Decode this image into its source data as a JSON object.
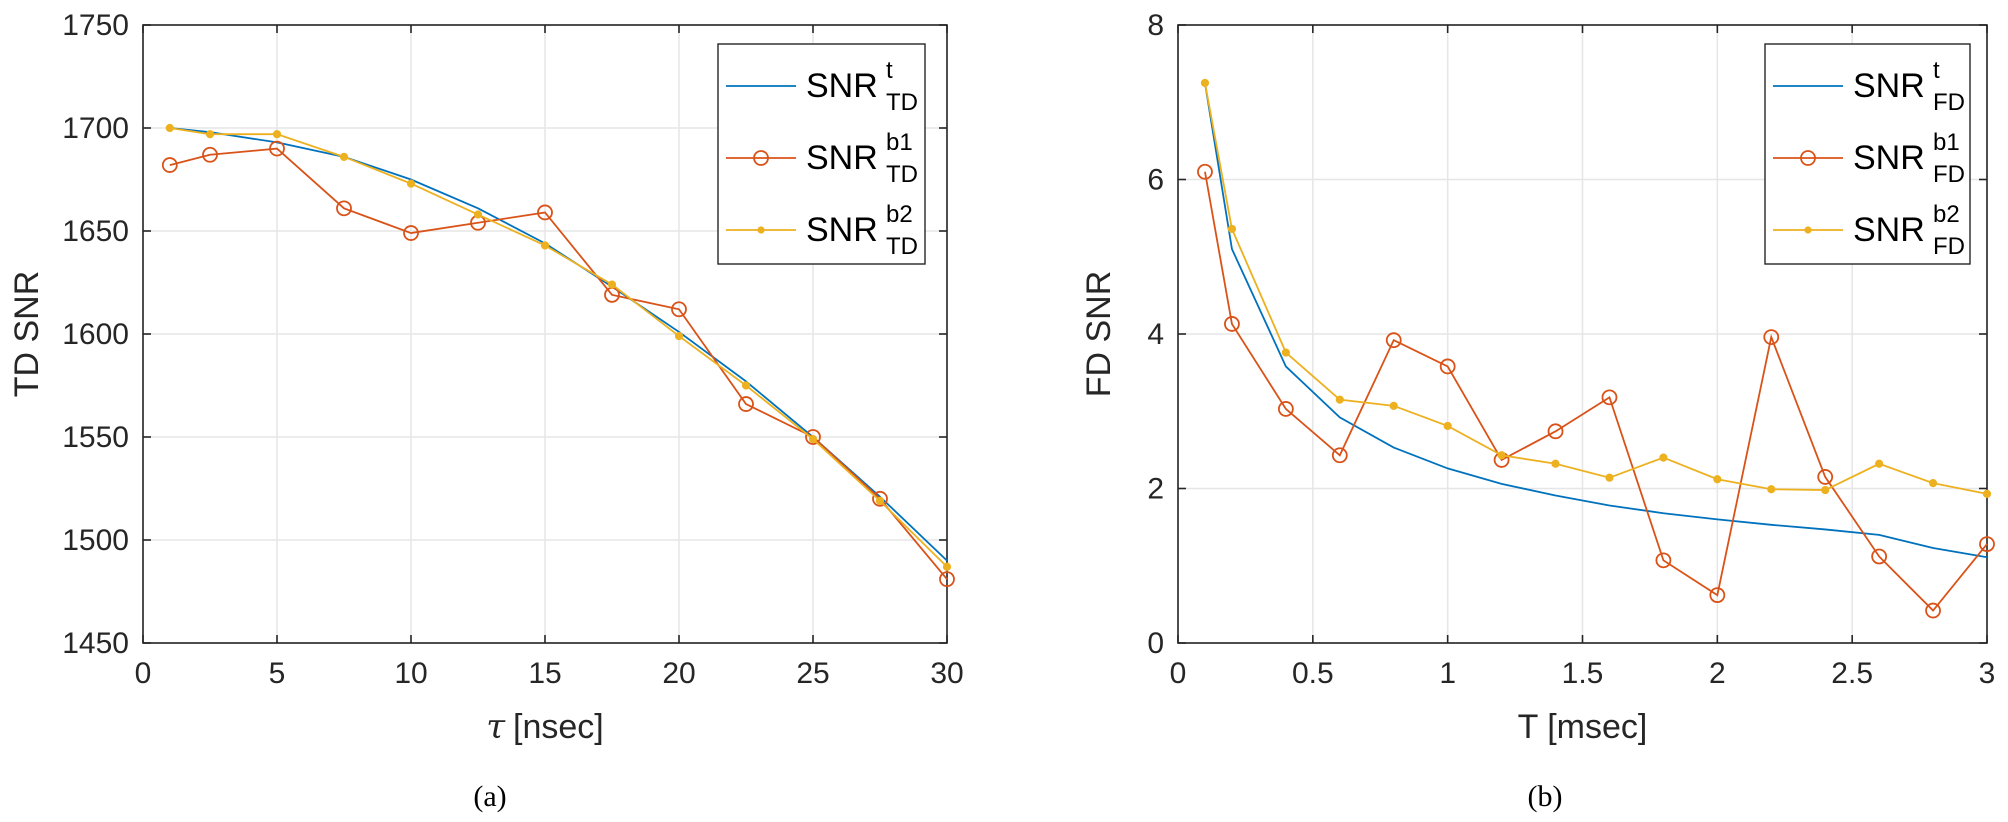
{
  "colors": {
    "blue": "#0072BD",
    "orange": "#D95319",
    "yellow": "#EDB120",
    "grid": "#E6E6E6",
    "axis": "#262626"
  },
  "chart_data": [
    {
      "type": "line",
      "panel": "(a)",
      "xlabel_symbol": "τ",
      "xlabel": "[nsec]",
      "ylabel": "TD SNR",
      "xlim": [
        0,
        30
      ],
      "ylim": [
        1450,
        1750
      ],
      "xticks": [
        0,
        5,
        10,
        15,
        20,
        25,
        30
      ],
      "yticks": [
        1450,
        1500,
        1550,
        1600,
        1650,
        1700,
        1750
      ],
      "grid": true,
      "legend_position": "top-right",
      "series": [
        {
          "name": "SNR",
          "sup": "t",
          "sub": "TD",
          "color": "#0072BD",
          "marker": "none",
          "x": [
            1,
            2.5,
            5,
            7.5,
            10,
            12.5,
            15,
            17.5,
            20,
            22.5,
            25,
            27.5,
            30
          ],
          "y": [
            1700,
            1698,
            1693,
            1686,
            1675,
            1661,
            1644,
            1623,
            1601,
            1577,
            1550,
            1521,
            1490
          ]
        },
        {
          "name": "SNR",
          "sup": "b1",
          "sub": "TD",
          "color": "#D95319",
          "marker": "circle",
          "x": [
            1,
            2.5,
            5,
            7.5,
            10,
            12.5,
            15,
            17.5,
            20,
            22.5,
            25,
            27.5,
            30
          ],
          "y": [
            1682,
            1687,
            1690,
            1661,
            1649,
            1654,
            1659,
            1619,
            1612,
            1566,
            1550,
            1520,
            1481
          ]
        },
        {
          "name": "SNR",
          "sup": "b2",
          "sub": "TD",
          "color": "#EDB120",
          "marker": "dot",
          "x": [
            1,
            2.5,
            5,
            7.5,
            10,
            12.5,
            15,
            17.5,
            20,
            22.5,
            25,
            27.5,
            30
          ],
          "y": [
            1700,
            1697,
            1697,
            1686,
            1673,
            1658,
            1643,
            1624,
            1599,
            1575,
            1549,
            1519,
            1487
          ]
        }
      ]
    },
    {
      "type": "line",
      "panel": "(b)",
      "xlabel": "T [msec]",
      "ylabel": "FD SNR",
      "xlim": [
        0,
        3
      ],
      "ylim": [
        0,
        8
      ],
      "xticks": [
        0,
        0.5,
        1,
        1.5,
        2,
        2.5,
        3
      ],
      "yticks": [
        0,
        2,
        4,
        6,
        8
      ],
      "grid": true,
      "legend_position": "top-right",
      "series": [
        {
          "name": "SNR",
          "sup": "t",
          "sub": "FD",
          "color": "#0072BD",
          "marker": "none",
          "x": [
            0.1,
            0.2,
            0.4,
            0.6,
            0.8,
            1.0,
            1.2,
            1.4,
            1.6,
            1.8,
            2.0,
            2.2,
            2.4,
            2.6,
            2.8,
            3.0
          ],
          "y": [
            7.25,
            5.1,
            3.58,
            2.92,
            2.53,
            2.26,
            2.06,
            1.91,
            1.78,
            1.68,
            1.6,
            1.53,
            1.47,
            1.4,
            1.23,
            1.11
          ]
        },
        {
          "name": "SNR",
          "sup": "b1",
          "sub": "FD",
          "color": "#D95319",
          "marker": "circle",
          "x": [
            0.1,
            0.2,
            0.4,
            0.6,
            0.8,
            1.0,
            1.2,
            1.4,
            1.6,
            1.8,
            2.0,
            2.2,
            2.4,
            2.6,
            2.8,
            3.0
          ],
          "y": [
            6.1,
            4.13,
            3.03,
            2.43,
            3.92,
            3.58,
            2.37,
            2.74,
            3.18,
            1.07,
            0.62,
            3.96,
            2.15,
            1.12,
            0.42,
            1.28
          ]
        },
        {
          "name": "SNR",
          "sup": "b2",
          "sub": "FD",
          "color": "#EDB120",
          "marker": "dot",
          "x": [
            0.1,
            0.2,
            0.4,
            0.6,
            0.8,
            1.0,
            1.2,
            1.4,
            1.6,
            1.8,
            2.0,
            2.2,
            2.4,
            2.6,
            2.8,
            3.0
          ],
          "y": [
            7.25,
            5.36,
            3.76,
            3.15,
            3.07,
            2.81,
            2.43,
            2.32,
            2.14,
            2.4,
            2.12,
            1.99,
            1.98,
            2.32,
            2.07,
            1.93
          ]
        }
      ]
    }
  ]
}
